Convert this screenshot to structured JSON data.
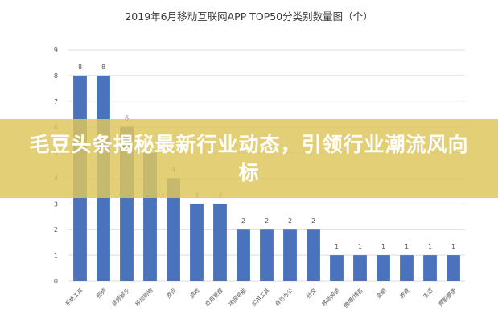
{
  "overlay": {
    "headline": "毛豆头条揭秘最新行业动态，引领行业潮流风向标"
  },
  "colors": {
    "bar": "#4a72bd",
    "grid": "#dcdcdc",
    "overlay": "#dec65c"
  },
  "chart_data": {
    "type": "bar",
    "title": "2019年6月移动互联网APP TOP50分类别数量图（个）",
    "xlabel": "",
    "ylabel": "",
    "ylim": [
      0,
      9
    ],
    "yticks": [
      "0",
      "1",
      "2",
      "3",
      "4",
      "5",
      "6",
      "7",
      "8",
      "9"
    ],
    "grid": true,
    "legend": "none",
    "categories": [
      "系统工具",
      "视频",
      "音频娱乐",
      "移动购物",
      "资讯",
      "游戏",
      "应用管理",
      "地图导航",
      "实用工具",
      "商务办公",
      "社交",
      "移动阅读",
      "微博/博客",
      "金融",
      "教育",
      "生活",
      "摄影摄像"
    ],
    "values": [
      8,
      8,
      6,
      5,
      4,
      3,
      3,
      2,
      2,
      2,
      2,
      1,
      1,
      1,
      1,
      1,
      1
    ],
    "value_labels": [
      "8",
      "8",
      "6",
      "5",
      "4",
      "3",
      "3",
      "2",
      "2",
      "2",
      "2",
      "1",
      "1",
      "1",
      "1",
      "1",
      "1"
    ]
  }
}
